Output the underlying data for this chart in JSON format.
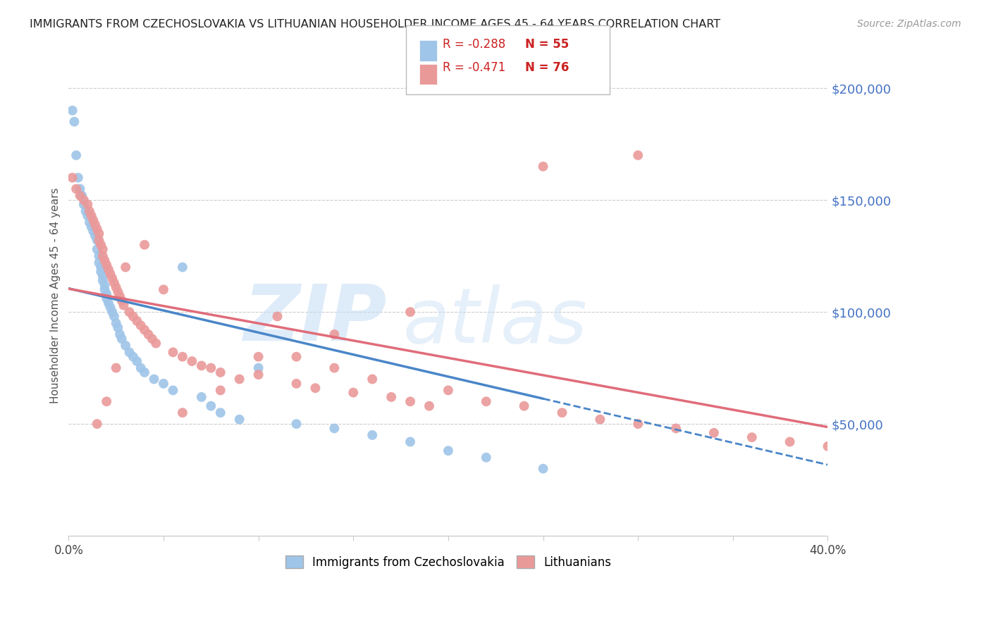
{
  "title": "IMMIGRANTS FROM CZECHOSLOVAKIA VS LITHUANIAN HOUSEHOLDER INCOME AGES 45 - 64 YEARS CORRELATION CHART",
  "source": "Source: ZipAtlas.com",
  "ylabel": "Householder Income Ages 45 - 64 years",
  "y_tick_values": [
    50000,
    100000,
    150000,
    200000
  ],
  "y_min": 0,
  "y_max": 215000,
  "x_min": 0.0,
  "x_max": 0.4,
  "legend_r1": "-0.288",
  "legend_n1": "55",
  "legend_r2": "-0.471",
  "legend_n2": "76",
  "color_czech": "#9fc5e8",
  "color_lith": "#ea9999",
  "color_line_czech": "#4a86c8",
  "color_line_lith": "#e06c7a",
  "color_axis_label": "#4472c4",
  "czech_x": [
    0.002,
    0.003,
    0.004,
    0.005,
    0.006,
    0.007,
    0.008,
    0.009,
    0.01,
    0.011,
    0.012,
    0.013,
    0.014,
    0.015,
    0.015,
    0.016,
    0.016,
    0.017,
    0.017,
    0.018,
    0.018,
    0.019,
    0.019,
    0.02,
    0.02,
    0.021,
    0.022,
    0.023,
    0.024,
    0.025,
    0.026,
    0.027,
    0.028,
    0.03,
    0.032,
    0.034,
    0.036,
    0.038,
    0.04,
    0.045,
    0.05,
    0.055,
    0.06,
    0.07,
    0.075,
    0.08,
    0.09,
    0.1,
    0.12,
    0.14,
    0.16,
    0.18,
    0.2,
    0.22,
    0.25
  ],
  "czech_y": [
    190000,
    185000,
    170000,
    160000,
    155000,
    152000,
    148000,
    145000,
    143000,
    140000,
    138000,
    136000,
    134000,
    132000,
    128000,
    125000,
    122000,
    120000,
    118000,
    116000,
    114000,
    112000,
    110000,
    108000,
    106000,
    104000,
    102000,
    100000,
    98000,
    95000,
    93000,
    90000,
    88000,
    85000,
    82000,
    80000,
    78000,
    75000,
    73000,
    70000,
    68000,
    65000,
    120000,
    62000,
    58000,
    55000,
    52000,
    75000,
    50000,
    48000,
    45000,
    42000,
    38000,
    35000,
    30000
  ],
  "lith_x": [
    0.002,
    0.004,
    0.006,
    0.008,
    0.01,
    0.011,
    0.012,
    0.013,
    0.014,
    0.015,
    0.016,
    0.016,
    0.017,
    0.018,
    0.018,
    0.019,
    0.02,
    0.021,
    0.022,
    0.023,
    0.024,
    0.025,
    0.026,
    0.027,
    0.028,
    0.029,
    0.03,
    0.032,
    0.034,
    0.036,
    0.038,
    0.04,
    0.042,
    0.044,
    0.046,
    0.05,
    0.055,
    0.06,
    0.065,
    0.07,
    0.075,
    0.08,
    0.09,
    0.1,
    0.11,
    0.12,
    0.13,
    0.14,
    0.15,
    0.16,
    0.17,
    0.18,
    0.19,
    0.2,
    0.22,
    0.24,
    0.26,
    0.28,
    0.3,
    0.32,
    0.34,
    0.36,
    0.38,
    0.4,
    0.3,
    0.25,
    0.18,
    0.14,
    0.12,
    0.1,
    0.08,
    0.06,
    0.04,
    0.025,
    0.02,
    0.015
  ],
  "lith_y": [
    160000,
    155000,
    152000,
    150000,
    148000,
    145000,
    143000,
    141000,
    139000,
    137000,
    135000,
    132000,
    130000,
    128000,
    125000,
    123000,
    121000,
    119000,
    117000,
    115000,
    113000,
    111000,
    109000,
    107000,
    105000,
    103000,
    120000,
    100000,
    98000,
    96000,
    94000,
    92000,
    90000,
    88000,
    86000,
    110000,
    82000,
    80000,
    78000,
    76000,
    75000,
    73000,
    70000,
    80000,
    98000,
    68000,
    66000,
    75000,
    64000,
    70000,
    62000,
    60000,
    58000,
    65000,
    60000,
    58000,
    55000,
    52000,
    50000,
    48000,
    46000,
    44000,
    42000,
    40000,
    170000,
    165000,
    100000,
    90000,
    80000,
    72000,
    65000,
    55000,
    130000,
    75000,
    60000,
    50000
  ]
}
